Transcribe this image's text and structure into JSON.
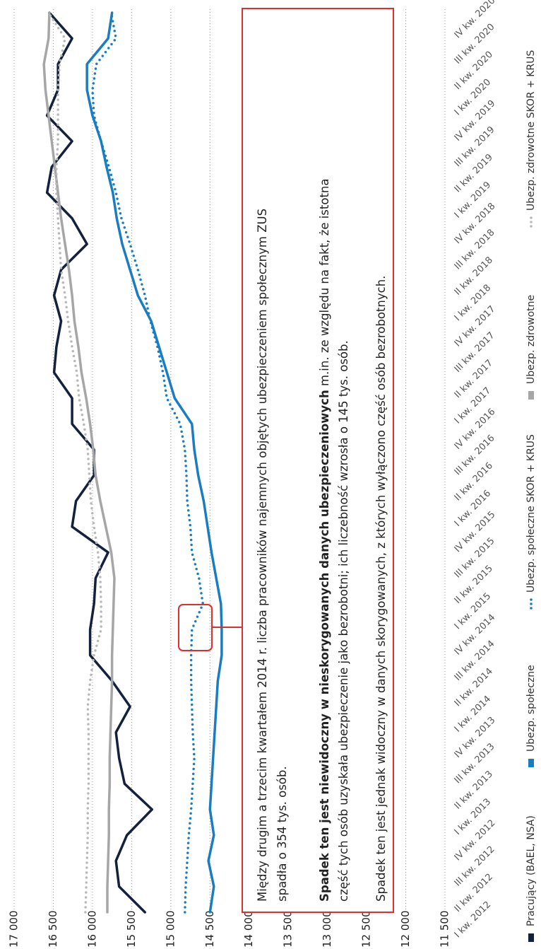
{
  "chart_data": {
    "type": "line",
    "categories": [
      "I kw. 2012",
      "II kw. 2012",
      "III kw. 2012",
      "IV kw. 2012",
      "I kw. 2013",
      "II kw. 2013",
      "III kw. 2013",
      "IV kw. 2013",
      "I kw. 2014",
      "II kw. 2014",
      "III kw. 2014",
      "IV kw. 2014",
      "I kw. 2015",
      "II kw. 2015",
      "III kw. 2015",
      "IV kw. 2015",
      "I kw. 2016",
      "II kw. 2016",
      "III kw. 2016",
      "IV kw. 2016",
      "I kw. 2017",
      "II kw. 2017",
      "III kw. 2017",
      "IV kw. 2017",
      "I kw. 2018",
      "II kw. 2018",
      "III kw. 2018",
      "IV kw. 2018",
      "I kw. 2019",
      "II kw. 2019",
      "III kw. 2019",
      "IV kw. 2019",
      "I kw. 2020",
      "II kw. 2020",
      "III kw. 2020",
      "IV kw. 2020"
    ],
    "series": [
      {
        "name": "Pracujący (BAEL, NSA)",
        "color": "#14213d",
        "style": "solid",
        "values": [
          15330,
          15660,
          15700,
          15560,
          15240,
          15590,
          15660,
          15700,
          15520,
          15750,
          16030,
          16030,
          15980,
          15960,
          15800,
          16260,
          16210,
          15980,
          15980,
          16260,
          16260,
          16490,
          16460,
          16400,
          16490,
          16400,
          16070,
          16260,
          16580,
          16520,
          16260,
          16580,
          16440,
          16440,
          16260,
          16550
        ]
      },
      {
        "name": "Ubezp. społeczne",
        "color": "#1a7dc0",
        "style": "solid",
        "values": [
          14500,
          14450,
          14520,
          14450,
          14500,
          14480,
          14460,
          14440,
          14420,
          14400,
          14350,
          14350,
          14360,
          14420,
          14480,
          14530,
          14580,
          14650,
          14700,
          14730,
          14950,
          15050,
          15150,
          15250,
          15420,
          15520,
          15620,
          15690,
          15740,
          15820,
          15890,
          16000,
          16070,
          16070,
          15800,
          15750
        ]
      },
      {
        "name": "Ubezp. społeczne SKOR + KRUS",
        "color": "#1a7dc0",
        "style": "dotted",
        "values": [
          14820,
          14810,
          14790,
          14770,
          14740,
          14720,
          14700,
          14720,
          14730,
          14740,
          14740,
          14730,
          14590,
          14640,
          14730,
          14750,
          14790,
          14800,
          14820,
          14880,
          15050,
          15100,
          15170,
          15260,
          15330,
          15420,
          15520,
          15630,
          15700,
          15790,
          15890,
          15980,
          16000,
          15950,
          15700,
          15760
        ]
      },
      {
        "name": "Ubezp. zdrowotne",
        "color": "#a6a6a6",
        "style": "solid",
        "values": [
          15810,
          15810,
          15800,
          15790,
          15790,
          15780,
          15780,
          15770,
          15760,
          15750,
          15750,
          15740,
          15730,
          15720,
          15760,
          15830,
          15900,
          15960,
          15990,
          16030,
          16080,
          16140,
          16180,
          16230,
          16260,
          16300,
          16350,
          16400,
          16440,
          16480,
          16520,
          16560,
          16600,
          16620,
          16560,
          16550
        ]
      },
      {
        "name": "Ubezp. zdrowotne SKOR + KRUS",
        "color": "#b8b8b8",
        "style": "dotted",
        "values": [
          16090,
          16080,
          16070,
          16060,
          16060,
          16050,
          16050,
          16050,
          16060,
          16030,
          15980,
          15890,
          15890,
          15900,
          15930,
          15980,
          16020,
          16040,
          16060,
          16110,
          16170,
          16200,
          16260,
          16310,
          16350,
          16400,
          16420,
          16440,
          16460,
          16460,
          16440,
          16440,
          16440,
          16420,
          16350,
          16560
        ]
      }
    ],
    "ylim": [
      11500,
      17000
    ],
    "yticks": [
      {
        "value": 17000,
        "label": "17 000"
      },
      {
        "value": 16500,
        "label": "16 500"
      },
      {
        "value": 16000,
        "label": "16 000"
      },
      {
        "value": 15500,
        "label": "15 500"
      },
      {
        "value": 15000,
        "label": "15 000"
      },
      {
        "value": 14500,
        "label": "14 500"
      },
      {
        "value": 14000,
        "label": "14 000"
      },
      {
        "value": 13500,
        "label": "13 500"
      },
      {
        "value": 13000,
        "label": "13 000"
      },
      {
        "value": 12500,
        "label": "12 500"
      },
      {
        "value": 12000,
        "label": "12 000"
      },
      {
        "value": 11500,
        "label": "11 500"
      }
    ],
    "grid": true,
    "legend": "bottom",
    "annotation": {
      "paragraph1": [
        "Między drugim a trzecim kwartałem 2014 r. liczba pracowników najemnych objętych ubezpieczeniem społecznym ZUS",
        "spadła o 354 tys. osób."
      ],
      "paragraph2_bold": "Spadek ten jest niewidoczny w nieskorygowanych danych ubezpieczeniowych",
      "paragraph2": [
        " m.in. ze względu na fakt, że istotna",
        "część tych osób uzyskała ubezpieczenie jako bezrobotni; ich liczebność wzrosła o 145 tys. osób."
      ],
      "paragraph3": "Spadek ten jest jednak widoczny w danych skorygowanych, z których wyłączono część osób bezrobotnych."
    }
  }
}
